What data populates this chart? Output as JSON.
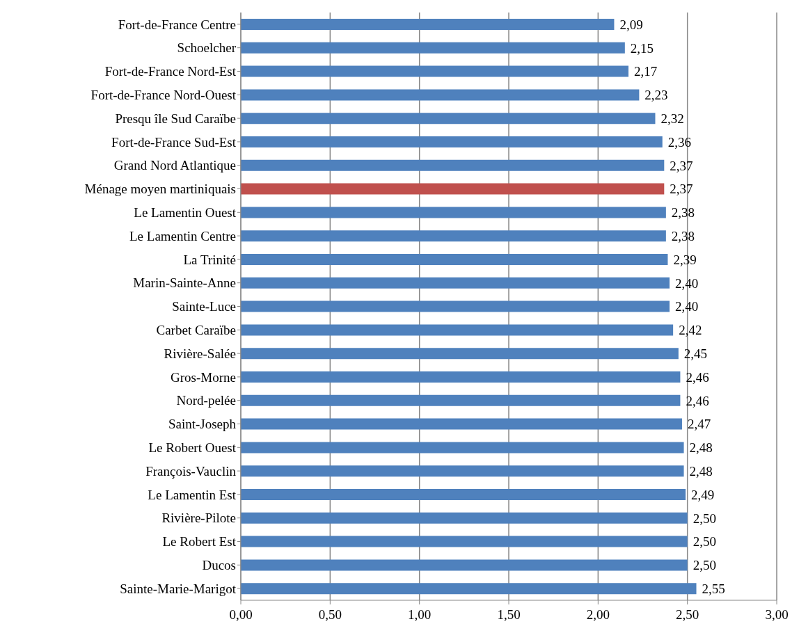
{
  "chart_data": {
    "type": "bar",
    "orientation": "horizontal",
    "categories": [
      "Fort-de-France Centre",
      "Schoelcher",
      "Fort-de-France Nord-Est",
      "Fort-de-France Nord-Ouest",
      "Presqu île Sud Caraïbe",
      "Fort-de-France Sud-Est",
      "Grand Nord Atlantique",
      "Ménage moyen martiniquais",
      "Le Lamentin Ouest",
      "Le Lamentin Centre",
      "La Trinité",
      "Marin-Sainte-Anne",
      "Sainte-Luce",
      "Carbet Caraïbe",
      "Rivière-Salée",
      "Gros-Morne",
      "Nord-pelée",
      "Saint-Joseph",
      "Le Robert Ouest",
      "François-Vauclin",
      "Le Lamentin Est",
      "Rivière-Pilote",
      "Le Robert  Est",
      "Ducos",
      "Sainte-Marie-Marigot"
    ],
    "values": [
      2.09,
      2.15,
      2.17,
      2.23,
      2.32,
      2.36,
      2.37,
      2.37,
      2.38,
      2.38,
      2.39,
      2.4,
      2.4,
      2.42,
      2.45,
      2.46,
      2.46,
      2.47,
      2.48,
      2.48,
      2.49,
      2.5,
      2.5,
      2.5,
      2.55
    ],
    "value_labels": [
      "2,09",
      "2,15",
      "2,17",
      "2,23",
      "2,32",
      "2,36",
      "2,37",
      "2,37",
      "2,38",
      "2,38",
      "2,39",
      "2,40",
      "2,40",
      "2,42",
      "2,45",
      "2,46",
      "2,46",
      "2,47",
      "2,48",
      "2,48",
      "2,49",
      "2,50",
      "2,50",
      "2,50",
      "2,55"
    ],
    "colors": [
      "#4f81bd",
      "#4f81bd",
      "#4f81bd",
      "#4f81bd",
      "#4f81bd",
      "#4f81bd",
      "#4f81bd",
      "#c0504d",
      "#4f81bd",
      "#4f81bd",
      "#4f81bd",
      "#4f81bd",
      "#4f81bd",
      "#4f81bd",
      "#4f81bd",
      "#4f81bd",
      "#4f81bd",
      "#4f81bd",
      "#4f81bd",
      "#4f81bd",
      "#4f81bd",
      "#4f81bd",
      "#4f81bd",
      "#4f81bd",
      "#4f81bd"
    ],
    "xlim": [
      0,
      3
    ],
    "xticks": [
      {
        "value": 0,
        "label": "0,00"
      },
      {
        "value": 0.5,
        "label": "0,50"
      },
      {
        "value": 1,
        "label": "1,00"
      },
      {
        "value": 1.5,
        "label": "1,50"
      },
      {
        "value": 2,
        "label": "2,00"
      },
      {
        "value": 2.5,
        "label": "2,50"
      },
      {
        "value": 3,
        "label": "3,00"
      }
    ],
    "grid": "x"
  }
}
